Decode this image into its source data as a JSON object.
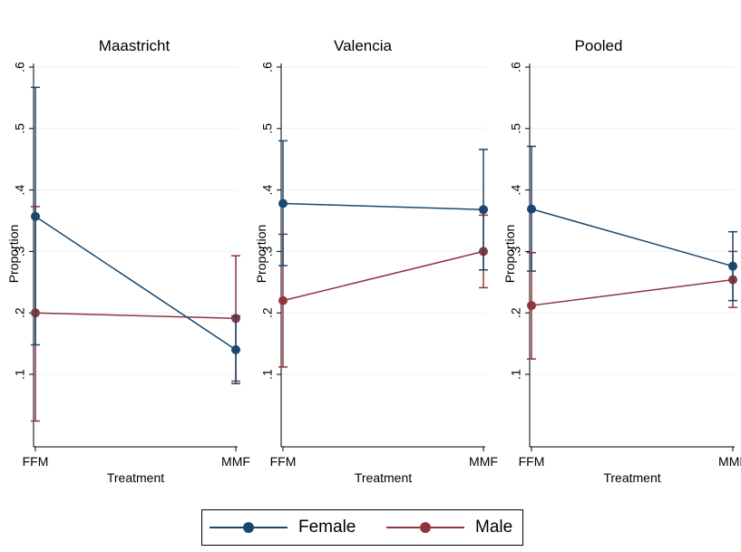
{
  "chart_data": [
    {
      "type": "line",
      "title": "Maastricht",
      "xlabel": "Treatment",
      "ylabel": "Proportion",
      "categories": [
        "FFM",
        "MMF"
      ],
      "yticks": [
        ".1",
        ".2",
        ".3",
        ".4",
        ".5",
        ".6"
      ],
      "ylim": [
        0,
        0.6
      ],
      "grid": true,
      "series": [
        {
          "name": "Female",
          "values": [
            0.357,
            0.14
          ],
          "ci_low": [
            0.148,
            0.085
          ],
          "ci_high": [
            0.567,
            0.195
          ]
        },
        {
          "name": "Male",
          "values": [
            0.2,
            0.191
          ],
          "ci_low": [
            0.024,
            0.089
          ],
          "ci_high": [
            0.373,
            0.293
          ]
        }
      ]
    },
    {
      "type": "line",
      "title": "Valencia",
      "xlabel": "Treatment",
      "ylabel": "Proportion",
      "categories": [
        "FFM",
        "MMF"
      ],
      "yticks": [
        ".1",
        ".2",
        ".3",
        ".4",
        ".5",
        ".6"
      ],
      "ylim": [
        0,
        0.6
      ],
      "grid": true,
      "series": [
        {
          "name": "Female",
          "values": [
            0.378,
            0.368
          ],
          "ci_low": [
            0.277,
            0.27
          ],
          "ci_high": [
            0.48,
            0.466
          ]
        },
        {
          "name": "Male",
          "values": [
            0.22,
            0.3
          ],
          "ci_low": [
            0.112,
            0.241
          ],
          "ci_high": [
            0.328,
            0.359
          ]
        }
      ]
    },
    {
      "type": "line",
      "title": "Pooled",
      "xlabel": "Treatment",
      "ylabel": "Proportion",
      "categories": [
        "FFM",
        "MMF"
      ],
      "yticks": [
        ".1",
        ".2",
        ".3",
        ".4",
        ".5",
        ".6"
      ],
      "ylim": [
        0,
        0.6
      ],
      "grid": true,
      "series": [
        {
          "name": "Female",
          "values": [
            0.369,
            0.276
          ],
          "ci_low": [
            0.268,
            0.22
          ],
          "ci_high": [
            0.471,
            0.332
          ]
        },
        {
          "name": "Male",
          "values": [
            0.212,
            0.254
          ],
          "ci_low": [
            0.125,
            0.209
          ],
          "ci_high": [
            0.298,
            0.3
          ]
        }
      ]
    }
  ],
  "legend": {
    "placement": "bottom",
    "items": [
      {
        "label": "Female",
        "color": "#1a476f"
      },
      {
        "label": "Male",
        "color": "#90353b"
      }
    ]
  },
  "colors": {
    "Female": "#1a476f",
    "Male": "#90353b",
    "grid": "#eaf2f3"
  }
}
